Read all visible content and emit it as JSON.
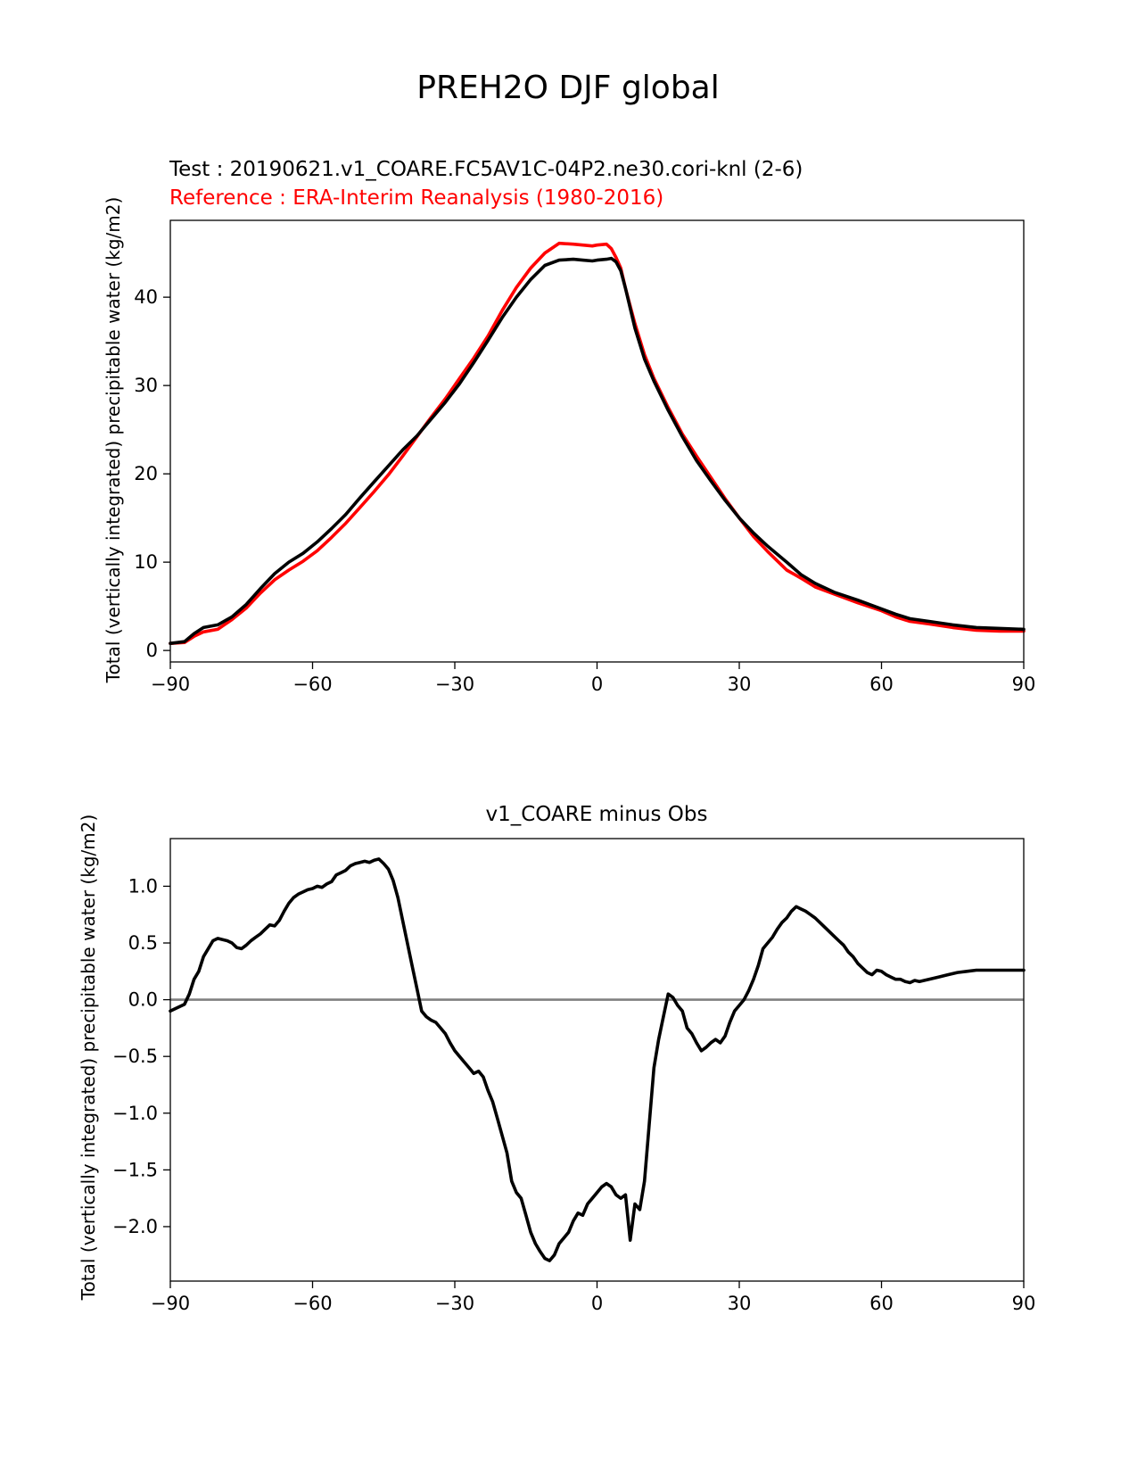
{
  "figure": {
    "title": "PREH2O DJF global"
  },
  "chart_data": [
    {
      "type": "line",
      "title_test": "Test : 20190621.v1_COARE.FC5AV1C-04P2.ne30.cori-knl (2-6)",
      "title_reference": "Reference : ERA-Interim Reanalysis (1980-2016)",
      "xlabel": "",
      "ylabel": "Total (vertically integrated) precipitable water (kg/m2)",
      "xlim": [
        -90,
        90
      ],
      "ylim": [
        -1.3,
        48.7
      ],
      "xticks": [
        -90,
        -60,
        -30,
        0,
        30,
        60,
        90
      ],
      "xtick_labels": [
        "−90",
        "−60",
        "−30",
        "0",
        "30",
        "60",
        "90"
      ],
      "yticks": [
        0,
        10,
        20,
        30,
        40
      ],
      "ytick_labels": [
        "0",
        "10",
        "20",
        "30",
        "40"
      ],
      "series": [
        {
          "name": "Reference",
          "color": "#ff0000",
          "x": [
            -90,
            -87,
            -85,
            -83,
            -80,
            -77,
            -74,
            -71,
            -68,
            -65,
            -62,
            -59,
            -56,
            -53,
            -50,
            -47,
            -44,
            -41,
            -38,
            -35,
            -32,
            -29,
            -26,
            -23,
            -20,
            -17,
            -14,
            -11,
            -8,
            -5,
            -3,
            -1,
            0,
            2,
            3,
            4,
            5,
            6,
            8,
            10,
            12,
            15,
            18,
            21,
            24,
            27,
            30,
            33,
            36,
            40,
            43,
            46,
            50,
            55,
            60,
            63,
            66,
            70,
            75,
            80,
            85,
            90
          ],
          "values": [
            0.8,
            0.9,
            1.6,
            2.1,
            2.4,
            3.5,
            4.8,
            6.5,
            8.0,
            9.1,
            10.1,
            11.3,
            12.8,
            14.4,
            16.2,
            18.0,
            19.9,
            22.0,
            24.2,
            26.4,
            28.5,
            30.8,
            33.1,
            35.6,
            38.5,
            41.1,
            43.3,
            45.0,
            46.1,
            46.0,
            45.9,
            45.8,
            45.9,
            46.0,
            45.5,
            44.5,
            43.3,
            41.0,
            37.0,
            33.5,
            30.8,
            27.5,
            24.5,
            22.0,
            19.6,
            17.2,
            15.0,
            12.9,
            11.2,
            9.1,
            8.2,
            7.2,
            6.4,
            5.4,
            4.5,
            3.8,
            3.3,
            3.0,
            2.6,
            2.3,
            2.2,
            2.2
          ]
        },
        {
          "name": "Test",
          "color": "#000000",
          "x": [
            -90,
            -87,
            -85,
            -83,
            -80,
            -77,
            -74,
            -71,
            -68,
            -65,
            -62,
            -59,
            -56,
            -53,
            -50,
            -47,
            -44,
            -41,
            -38,
            -35,
            -32,
            -29,
            -26,
            -23,
            -20,
            -17,
            -14,
            -11,
            -8,
            -5,
            -3,
            -1,
            0,
            2,
            3,
            4,
            5,
            6,
            8,
            10,
            12,
            15,
            18,
            21,
            24,
            27,
            30,
            33,
            36,
            40,
            43,
            46,
            50,
            55,
            60,
            63,
            66,
            70,
            75,
            80,
            85,
            90
          ],
          "values": [
            0.8,
            1.0,
            1.9,
            2.6,
            2.9,
            3.8,
            5.2,
            7.0,
            8.7,
            10.0,
            11.0,
            12.3,
            13.8,
            15.4,
            17.3,
            19.1,
            20.9,
            22.7,
            24.3,
            26.2,
            28.1,
            30.2,
            32.6,
            35.1,
            37.7,
            40.0,
            42.0,
            43.6,
            44.2,
            44.3,
            44.2,
            44.1,
            44.2,
            44.3,
            44.4,
            44.0,
            43.0,
            41.0,
            36.5,
            33.0,
            30.5,
            27.2,
            24.2,
            21.5,
            19.2,
            17.0,
            15.0,
            13.3,
            11.8,
            10.0,
            8.6,
            7.6,
            6.6,
            5.7,
            4.7,
            4.1,
            3.6,
            3.3,
            2.9,
            2.6,
            2.5,
            2.4
          ]
        }
      ]
    },
    {
      "type": "line",
      "title": "v1_COARE minus Obs",
      "xlabel": "",
      "ylabel": "Total (vertically integrated) precipitable water (kg/m2)",
      "xlim": [
        -90,
        90
      ],
      "ylim": [
        -2.48,
        1.42
      ],
      "xticks": [
        -90,
        -60,
        -30,
        0,
        30,
        60,
        90
      ],
      "xtick_labels": [
        "−90",
        "−60",
        "−30",
        "0",
        "30",
        "60",
        "90"
      ],
      "yticks": [
        1.0,
        0.5,
        0.0,
        -0.5,
        -1.0,
        -1.5,
        -2.0
      ],
      "ytick_labels": [
        "1.0",
        "0.5",
        "0.0",
        "−0.5",
        "−1.0",
        "−1.5",
        "−2.0"
      ],
      "zero_line": 0.0,
      "series": [
        {
          "name": "v1_COARE minus Obs",
          "color": "#000000",
          "x": [
            -90,
            -88,
            -87,
            -86,
            -85,
            -84,
            -83,
            -82,
            -81,
            -80,
            -78,
            -77,
            -76,
            -75,
            -74,
            -73,
            -72,
            -71,
            -70,
            -69,
            -68,
            -67,
            -66,
            -65,
            -64,
            -63,
            -62,
            -61,
            -60,
            -59,
            -58,
            -57,
            -56,
            -55,
            -54,
            -53,
            -52,
            -51,
            -50,
            -49,
            -48,
            -47,
            -46,
            -45,
            -44,
            -43,
            -42,
            -41,
            -40,
            -39,
            -38,
            -37,
            -36,
            -35,
            -34,
            -33,
            -32,
            -31,
            -30,
            -29,
            -28,
            -27,
            -26,
            -25,
            -24,
            -23,
            -22,
            -21,
            -20,
            -19,
            -18,
            -17,
            -16,
            -15,
            -14,
            -13,
            -12,
            -11,
            -10,
            -9,
            -8,
            -7,
            -6,
            -5,
            -4,
            -3,
            -2,
            -1,
            0,
            1,
            2,
            3,
            4,
            5,
            6,
            7,
            8,
            9,
            10,
            11,
            12,
            13,
            14,
            15,
            16,
            17,
            18,
            19,
            20,
            21,
            22,
            23,
            24,
            25,
            26,
            27,
            28,
            29,
            30,
            31,
            32,
            33,
            34,
            35,
            36,
            37,
            38,
            39,
            40,
            41,
            42,
            43,
            44,
            45,
            46,
            47,
            48,
            49,
            50,
            51,
            52,
            53,
            54,
            55,
            56,
            57,
            58,
            59,
            60,
            61,
            62,
            63,
            64,
            65,
            66,
            67,
            68,
            69,
            70,
            72,
            74,
            76,
            78,
            80,
            82,
            84,
            86,
            88,
            90
          ],
          "values": [
            -0.1,
            -0.06,
            -0.04,
            0.05,
            0.18,
            0.25,
            0.38,
            0.45,
            0.52,
            0.54,
            0.52,
            0.5,
            0.46,
            0.45,
            0.48,
            0.52,
            0.55,
            0.58,
            0.62,
            0.66,
            0.65,
            0.7,
            0.78,
            0.85,
            0.9,
            0.93,
            0.95,
            0.97,
            0.98,
            1.0,
            0.99,
            1.02,
            1.04,
            1.1,
            1.12,
            1.14,
            1.18,
            1.2,
            1.21,
            1.22,
            1.21,
            1.23,
            1.24,
            1.2,
            1.15,
            1.05,
            0.9,
            0.7,
            0.5,
            0.3,
            0.1,
            -0.1,
            -0.15,
            -0.18,
            -0.2,
            -0.25,
            -0.3,
            -0.38,
            -0.45,
            -0.5,
            -0.55,
            -0.6,
            -0.65,
            -0.63,
            -0.68,
            -0.8,
            -0.9,
            -1.05,
            -1.2,
            -1.35,
            -1.6,
            -1.7,
            -1.75,
            -1.9,
            -2.05,
            -2.15,
            -2.22,
            -2.28,
            -2.3,
            -2.25,
            -2.15,
            -2.1,
            -2.05,
            -1.95,
            -1.88,
            -1.9,
            -1.8,
            -1.75,
            -1.7,
            -1.65,
            -1.62,
            -1.65,
            -1.72,
            -1.75,
            -1.72,
            -2.12,
            -1.8,
            -1.85,
            -1.6,
            -1.1,
            -0.6,
            -0.35,
            -0.15,
            0.05,
            0.02,
            -0.05,
            -0.1,
            -0.25,
            -0.3,
            -0.38,
            -0.45,
            -0.42,
            -0.38,
            -0.35,
            -0.38,
            -0.32,
            -0.2,
            -0.1,
            -0.05,
            0.0,
            0.08,
            0.18,
            0.3,
            0.45,
            0.5,
            0.55,
            0.62,
            0.68,
            0.72,
            0.78,
            0.82,
            0.8,
            0.78,
            0.75,
            0.72,
            0.68,
            0.64,
            0.6,
            0.56,
            0.52,
            0.48,
            0.42,
            0.38,
            0.32,
            0.28,
            0.24,
            0.22,
            0.26,
            0.25,
            0.22,
            0.2,
            0.18,
            0.18,
            0.16,
            0.15,
            0.17,
            0.16,
            0.17,
            0.18,
            0.2,
            0.22,
            0.24,
            0.25,
            0.26,
            0.26,
            0.26,
            0.26,
            0.26,
            0.26
          ]
        }
      ]
    }
  ]
}
